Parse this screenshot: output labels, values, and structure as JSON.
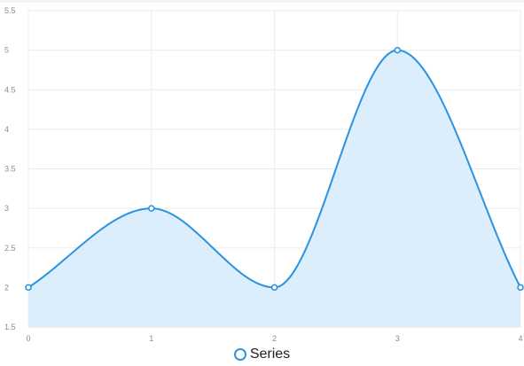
{
  "chart_data": {
    "type": "area",
    "title": "",
    "xlabel": "",
    "ylabel": "",
    "x": [
      0,
      1,
      2,
      3,
      4
    ],
    "series": [
      {
        "name": "Series",
        "values": [
          2,
          3,
          2,
          5,
          2
        ]
      }
    ],
    "xlim": [
      0,
      4
    ],
    "ylim": [
      1.5,
      5.5
    ],
    "x_ticks": [
      "0",
      "1",
      "2",
      "3",
      "4"
    ],
    "y_ticks": [
      "1.5",
      "2",
      "2.5",
      "3",
      "3.5",
      "4",
      "4.5",
      "5",
      "5.5"
    ],
    "y_tick_values": [
      1.5,
      2,
      2.5,
      3,
      3.5,
      4,
      4.5,
      5,
      5.5
    ],
    "x_tick_values": [
      0,
      1,
      2,
      3,
      4
    ],
    "grid": true,
    "smooth": true,
    "legend_position": "bottom-center",
    "colors": {
      "line": "#2b93df",
      "fill": "#dcedfb",
      "grid": "#ececec",
      "tick_text": "#8c8c8c"
    }
  },
  "legend": {
    "label": "Series"
  }
}
